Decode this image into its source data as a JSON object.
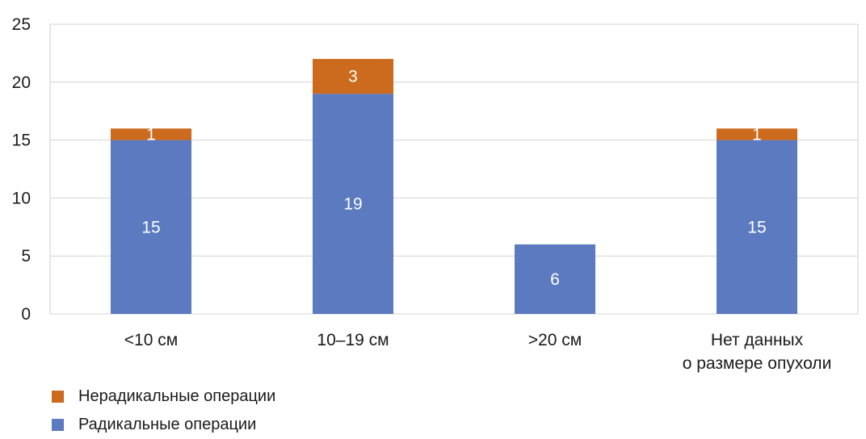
{
  "chart_data": {
    "type": "bar",
    "stacked": true,
    "categories": [
      "<10 см",
      "10–19 см",
      ">20 см",
      [
        "Нет данных",
        "о размере опухоли"
      ]
    ],
    "series": [
      {
        "name": "Радикальные операции",
        "color": "#5b7abf",
        "values": [
          15,
          19,
          6,
          15
        ]
      },
      {
        "name": "Нерадикальные операции",
        "color": "#cc6a1e",
        "values": [
          1,
          3,
          0,
          1
        ]
      }
    ],
    "ylim": [
      0,
      25
    ],
    "yticks": [
      "0",
      "5",
      "10",
      "15",
      "20",
      "25"
    ],
    "grid": true,
    "legend_order": [
      "Нерадикальные операции",
      "Радикальные операции"
    ],
    "legend_placement": "bottom-left",
    "title": "",
    "xlabel": "",
    "ylabel": ""
  }
}
